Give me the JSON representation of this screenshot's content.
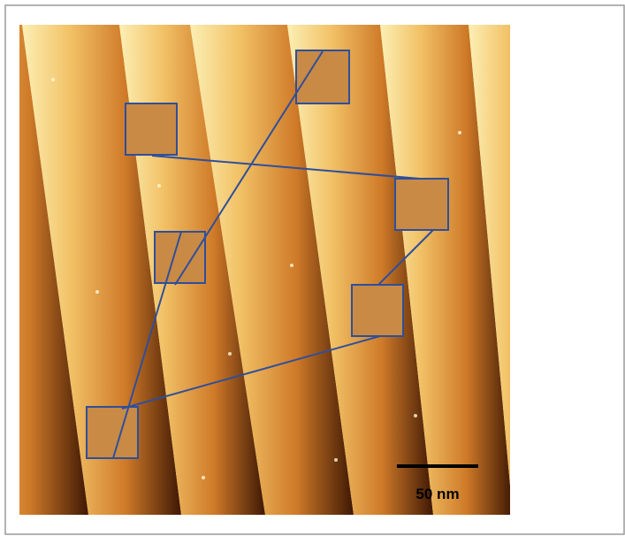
{
  "scale_bar": {
    "label": "50 nm"
  }
}
